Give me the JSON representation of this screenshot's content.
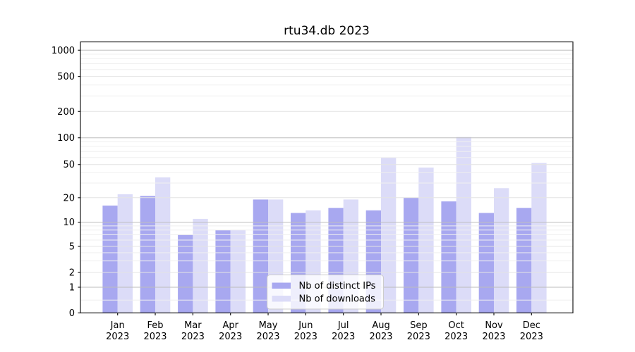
{
  "chart_data": {
    "type": "bar",
    "title": "rtu34.db 2023",
    "categories": [
      "Jan",
      "Feb",
      "Mar",
      "Apr",
      "May",
      "Jun",
      "Jul",
      "Aug",
      "Sep",
      "Oct",
      "Nov",
      "Dec"
    ],
    "year_label": "2023",
    "series": [
      {
        "name": "Nb of distinct IPs",
        "color": "#a8a8f0",
        "values": [
          16,
          21,
          7,
          8,
          19,
          13,
          15,
          14,
          20,
          18,
          13,
          15
        ]
      },
      {
        "name": "Nb of downloads",
        "color": "#dcdcf8",
        "values": [
          22,
          35,
          11,
          8,
          19,
          14,
          19,
          60,
          46,
          102,
          26,
          52
        ]
      }
    ],
    "y_ticks": [
      0,
      1,
      2,
      5,
      10,
      20,
      50,
      100,
      200,
      500,
      1000
    ],
    "y_scale": "symlog",
    "ylim": [
      0,
      1250
    ],
    "grid": true,
    "legend": {
      "entries": [
        "Nb of distinct IPs",
        "Nb of downloads"
      ],
      "position": "lower-center"
    }
  },
  "colors": {
    "bar_ips": "#a8a8f0",
    "bar_downloads": "#dcdcf8",
    "grid_major": "#bdbdbd",
    "grid_mid": "#e4e4e4",
    "grid_minor": "#efefef",
    "spine": "#1a1a1a",
    "legend_border": "#cccccc"
  }
}
